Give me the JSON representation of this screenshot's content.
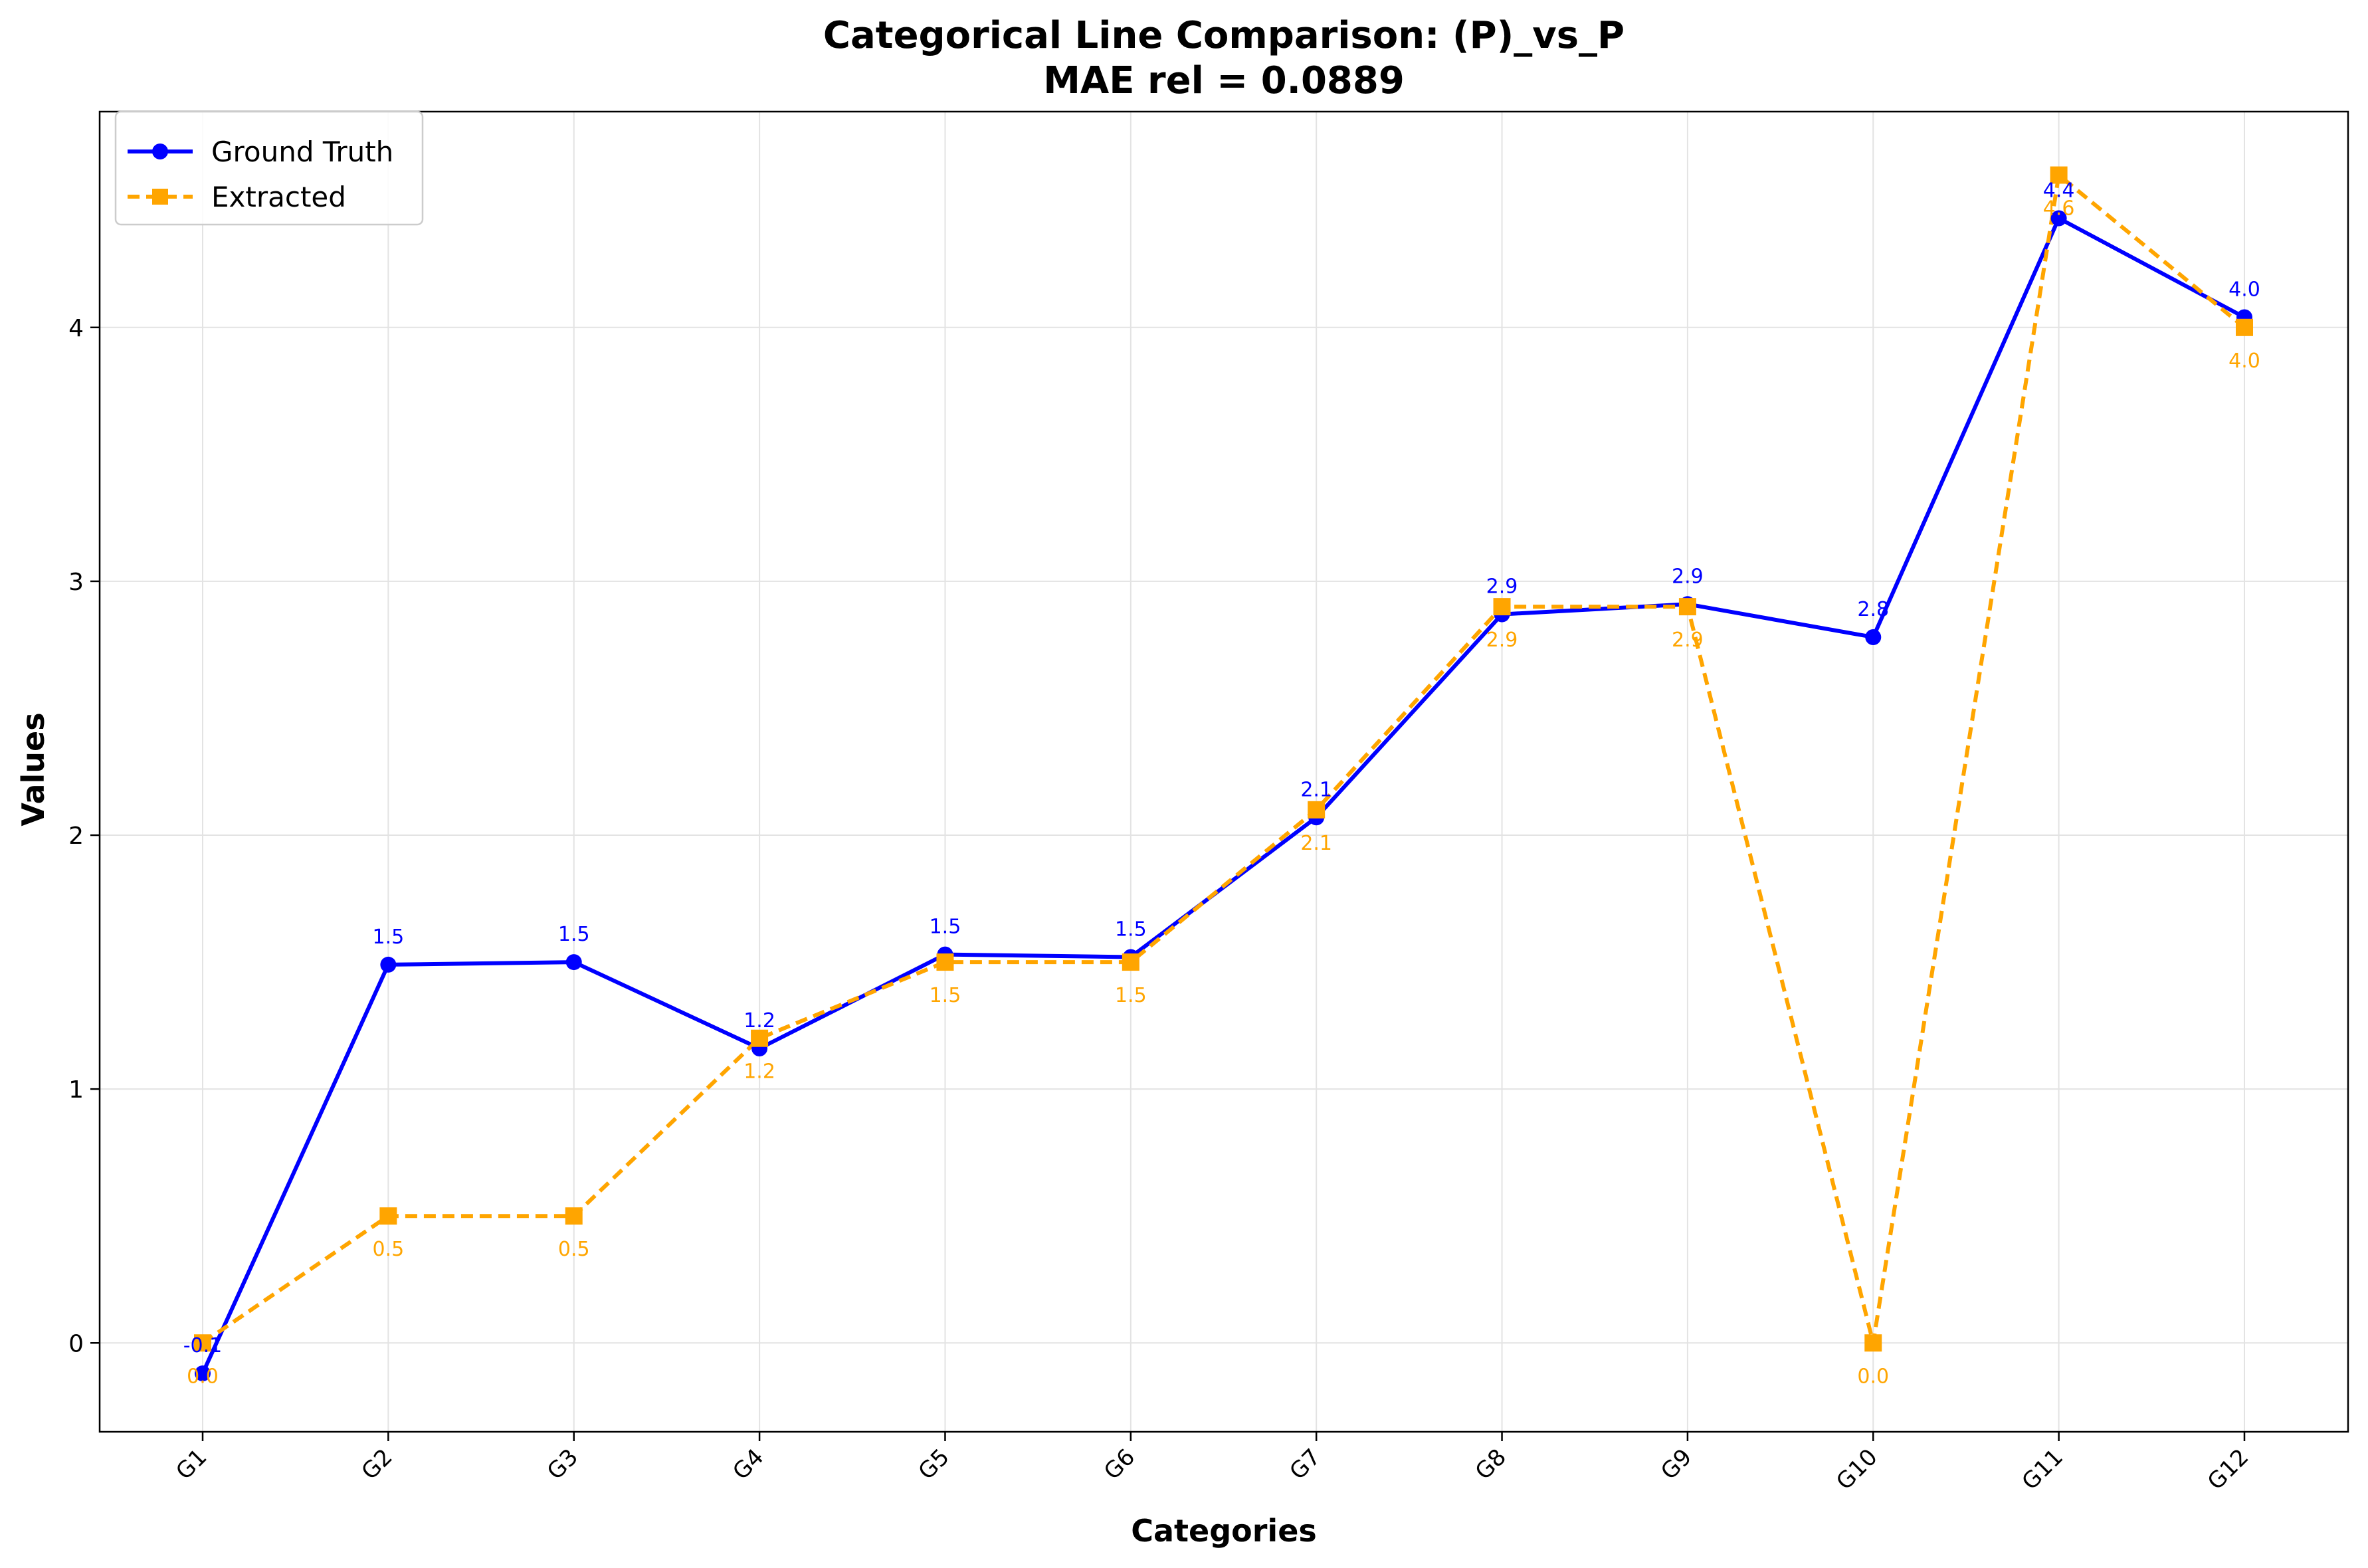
{
  "chart_data": {
    "type": "line",
    "title": "Categorical Line Comparison: (P)_vs_P",
    "subtitle": "MAE rel = 0.0889",
    "xlabel": "Categories",
    "ylabel": "Values",
    "categories": [
      "G1",
      "G2",
      "G3",
      "G4",
      "G5",
      "G6",
      "G7",
      "G8",
      "G9",
      "G10",
      "G11",
      "G12"
    ],
    "ylim": [
      -0.35,
      4.85
    ],
    "yticks": [
      0,
      1,
      2,
      3,
      4
    ],
    "grid": true,
    "legend_position": "top-left",
    "series": [
      {
        "name": "Ground Truth",
        "color": "#0000ff",
        "line_style": "solid",
        "marker": "circle",
        "values": [
          -0.12,
          1.49,
          1.5,
          1.16,
          1.53,
          1.52,
          2.07,
          2.87,
          2.91,
          2.78,
          4.43,
          4.04
        ],
        "labels": [
          "-0.1",
          "1.5",
          "1.5",
          "1.2",
          "1.5",
          "1.5",
          "2.1",
          "2.9",
          "2.9",
          "2.8",
          "4.4",
          "4.0"
        ]
      },
      {
        "name": "Extracted",
        "color": "#ffa500",
        "line_style": "dashed",
        "marker": "square",
        "values": [
          0.0,
          0.5,
          0.5,
          1.2,
          1.5,
          1.5,
          2.1,
          2.9,
          2.9,
          0.0,
          4.6,
          4.0
        ],
        "labels": [
          "0.0",
          "0.5",
          "0.5",
          "1.2",
          "1.5",
          "1.5",
          "2.1",
          "2.9",
          "2.9",
          "0.0",
          "4.6",
          "4.0"
        ]
      }
    ]
  }
}
